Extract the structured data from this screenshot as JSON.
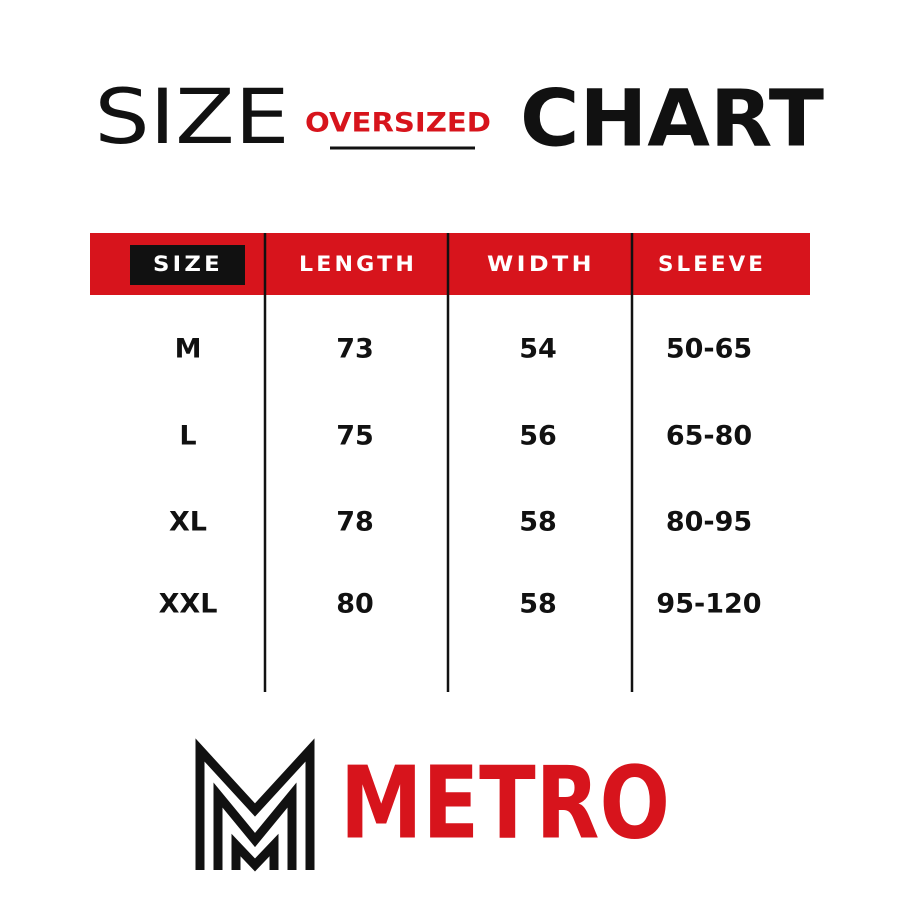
{
  "header": {
    "title_left": "SIZE",
    "subtitle": "OVERSIZED",
    "title_right": "CHART"
  },
  "table": {
    "columns": [
      "SIZE",
      "LENGTH",
      "WIDTH",
      "SLEEVE"
    ],
    "rows": [
      [
        "M",
        73,
        54,
        "50-65"
      ],
      [
        "L",
        75,
        56,
        "65-80"
      ],
      [
        "XL",
        78,
        58,
        "80-95"
      ],
      [
        "XXL",
        80,
        58,
        "95-120"
      ]
    ]
  },
  "brand": {
    "name": "METRO"
  }
}
